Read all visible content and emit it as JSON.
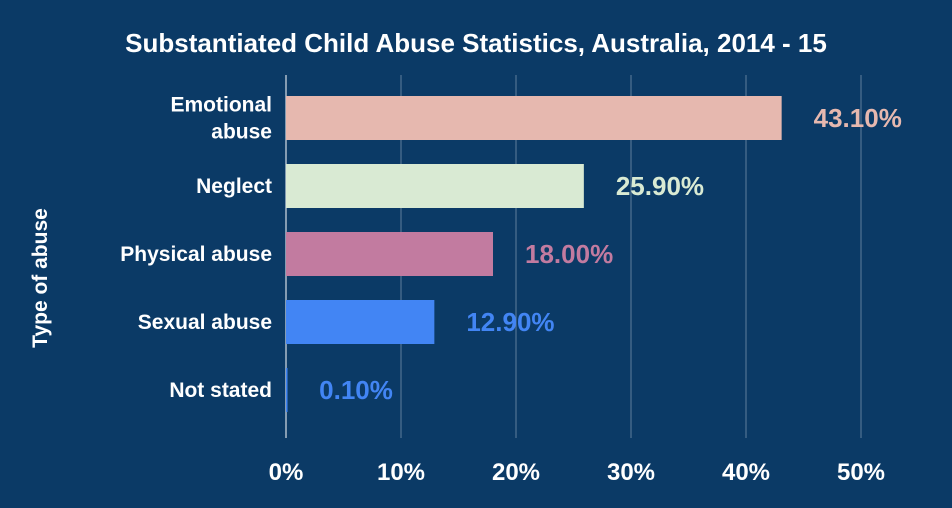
{
  "chart_data": {
    "type": "bar",
    "orientation": "horizontal",
    "title": "Substantiated Child Abuse Statistics, Australia, 2014 - 15",
    "xlabel": "",
    "ylabel": "Type of abuse",
    "xlim": [
      0,
      50
    ],
    "x_ticks": [
      "0%",
      "10%",
      "20%",
      "30%",
      "40%",
      "50%"
    ],
    "grid": true,
    "categories": [
      [
        "Emotional",
        "abuse"
      ],
      [
        "Neglect"
      ],
      [
        "Physical abuse"
      ],
      [
        "Sexual abuse"
      ],
      [
        "Not stated"
      ]
    ],
    "values": [
      43.1,
      25.9,
      18.0,
      12.9,
      0.1
    ],
    "data_labels": [
      "43.10%",
      "25.90%",
      "18.00%",
      "12.90%",
      "0.10%"
    ],
    "colors": [
      "#e6b8af",
      "#d9ead3",
      "#c27ba0",
      "#4285f4",
      "#4285f4"
    ]
  }
}
